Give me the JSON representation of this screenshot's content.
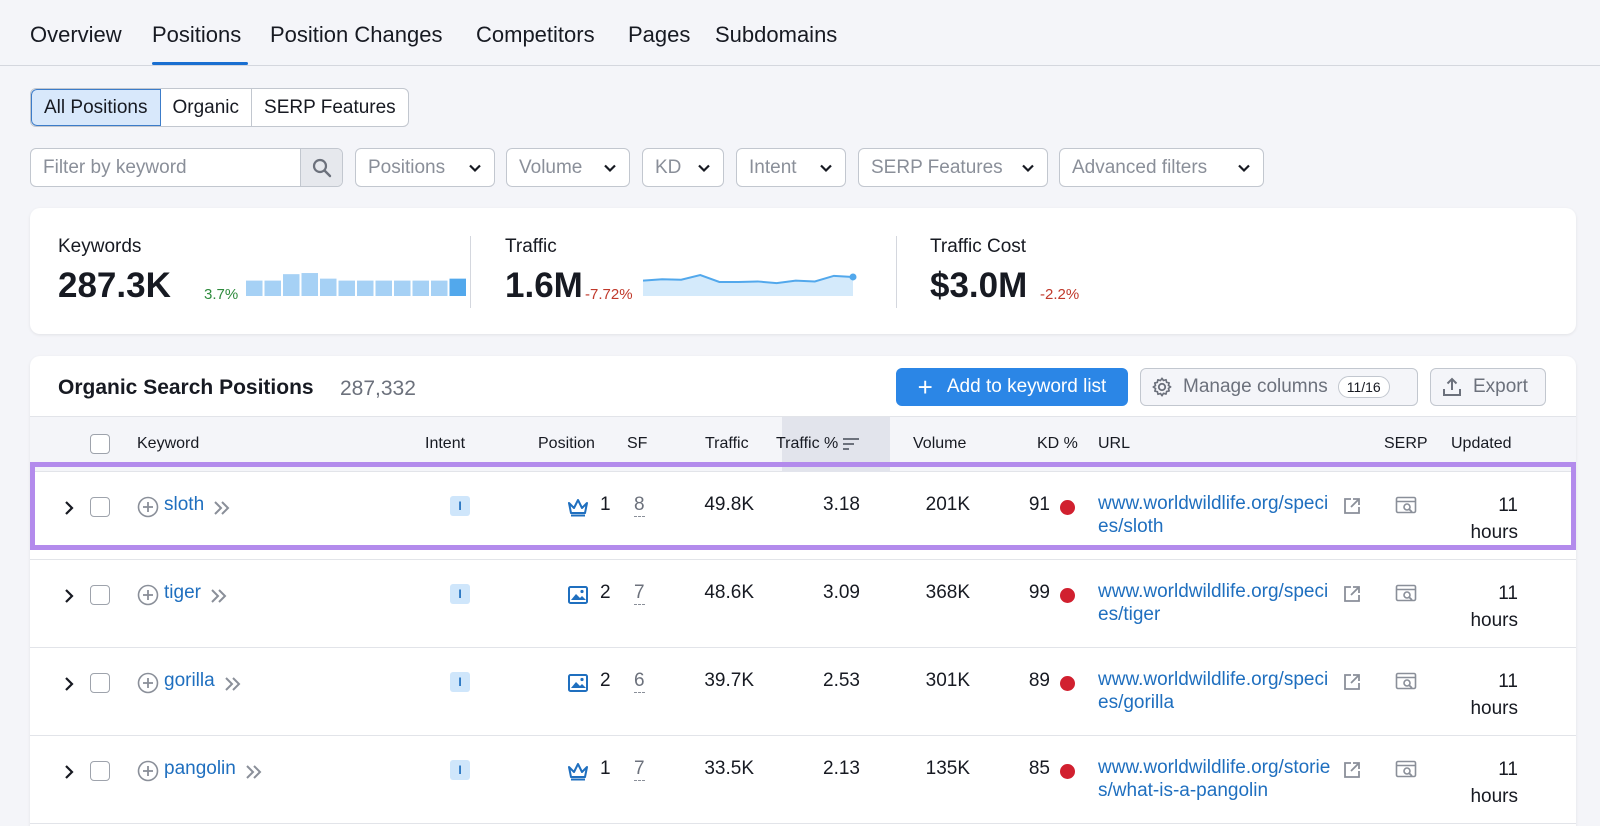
{
  "top_tabs": [
    "Overview",
    "Positions",
    "Position Changes",
    "Competitors",
    "Pages",
    "Subdomains"
  ],
  "active_tab": "Positions",
  "segments": [
    "All Positions",
    "Organic",
    "SERP Features"
  ],
  "active_segment": "All Positions",
  "filter": {
    "placeholder": "Filter by keyword"
  },
  "dropdowns": [
    "Positions",
    "Volume",
    "KD",
    "Intent",
    "SERP Features",
    "Advanced filters"
  ],
  "summary": {
    "keywords": {
      "label": "Keywords",
      "value": "287.3K",
      "delta": "3.7%",
      "delta_color": "#2e8b3d",
      "bars": [
        0.55,
        0.55,
        0.78,
        0.82,
        0.62,
        0.55,
        0.55,
        0.55,
        0.55,
        0.55,
        0.55,
        0.62
      ]
    },
    "traffic": {
      "label": "Traffic",
      "value": "1.6M",
      "delta": "-7.72%",
      "delta_color": "#c0392b",
      "line": [
        0.55,
        0.6,
        0.58,
        0.75,
        0.5,
        0.5,
        0.52,
        0.46,
        0.55,
        0.52,
        0.72,
        0.68
      ]
    },
    "traffic_cost": {
      "label": "Traffic Cost",
      "value": "$3.0M",
      "delta": "-2.2%",
      "delta_color": "#c0392b"
    }
  },
  "table": {
    "title": "Organic Search Positions",
    "count": "287,332",
    "add_label": "Add to keyword list",
    "manage_label": "Manage columns",
    "manage_badge": "11/16",
    "export_label": "Export",
    "headers": {
      "keyword": "Keyword",
      "intent": "Intent",
      "position": "Position",
      "sf": "SF",
      "traffic": "Traffic",
      "traffic_pct": "Traffic %",
      "volume": "Volume",
      "kd": "KD %",
      "url": "URL",
      "serp": "SERP",
      "updated": "Updated"
    },
    "rows": [
      {
        "keyword": "sloth",
        "intent": "I",
        "position_icon": "crown-icon",
        "position": "1",
        "sf": "8",
        "traffic": "49.8K",
        "traffic_pct": "3.18",
        "volume": "201K",
        "kd": "91",
        "url": "www.worldwildlife.org/species/sloth",
        "updated_num": "11",
        "updated_unit": "hours"
      },
      {
        "keyword": "tiger",
        "intent": "I",
        "position_icon": "image-icon",
        "position": "2",
        "sf": "7",
        "traffic": "48.6K",
        "traffic_pct": "3.09",
        "volume": "368K",
        "kd": "99",
        "url": "www.worldwildlife.org/species/tiger",
        "updated_num": "11",
        "updated_unit": "hours"
      },
      {
        "keyword": "gorilla",
        "intent": "I",
        "position_icon": "image-icon",
        "position": "2",
        "sf": "6",
        "traffic": "39.7K",
        "traffic_pct": "2.53",
        "volume": "301K",
        "kd": "89",
        "url": "www.worldwildlife.org/species/gorilla",
        "updated_num": "11",
        "updated_unit": "hours"
      },
      {
        "keyword": "pangolin",
        "intent": "I",
        "position_icon": "crown-icon",
        "position": "1",
        "sf": "7",
        "traffic": "33.5K",
        "traffic_pct": "2.13",
        "volume": "135K",
        "kd": "85",
        "url": "www.worldwildlife.org/stories/what-is-a-pangolin",
        "updated_num": "11",
        "updated_unit": "hours"
      }
    ]
  }
}
